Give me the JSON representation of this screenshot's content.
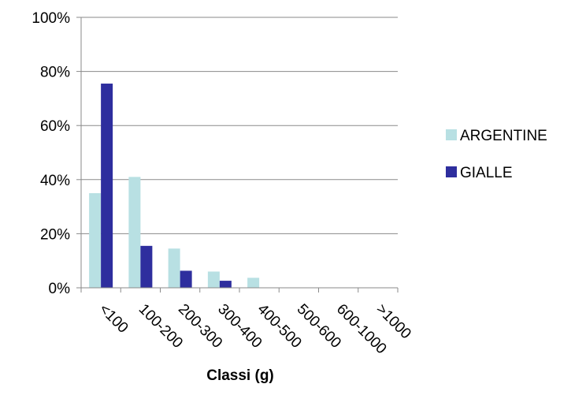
{
  "chart_data": {
    "type": "bar",
    "title": "",
    "xlabel": "Classi (g)",
    "ylabel": "",
    "ylim": [
      0,
      100
    ],
    "yticks": [
      "0%",
      "20%",
      "40%",
      "60%",
      "80%",
      "100%"
    ],
    "grid": true,
    "legend_position": "right",
    "categories": [
      "<100",
      "100-200",
      "200-300",
      "300-400",
      "400-500",
      "500-600",
      "600-1000",
      ">1000"
    ],
    "series": [
      {
        "name": "ARGENTINE",
        "color": "#b8e0e3",
        "values": [
          35,
          41,
          14.5,
          6,
          3.7,
          0,
          0,
          0
        ]
      },
      {
        "name": "GIALLE",
        "color": "#2e2e9e",
        "values": [
          75.5,
          15.5,
          6.3,
          2.6,
          0,
          0,
          0,
          0
        ]
      }
    ]
  }
}
